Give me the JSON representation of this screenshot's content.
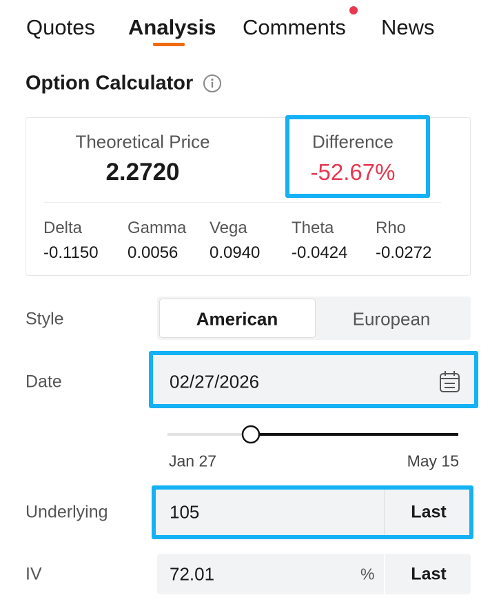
{
  "tabs": [
    {
      "label": "Quotes"
    },
    {
      "label": "Analysis"
    },
    {
      "label": "Comments"
    },
    {
      "label": "News"
    }
  ],
  "title": "Option Calculator",
  "summary": {
    "theoretical_price": {
      "label": "Theoretical Price",
      "value": "2.2720"
    },
    "difference": {
      "label": "Difference",
      "value": "-52.67%"
    }
  },
  "greeks": [
    {
      "name": "Delta",
      "value": "-0.1150"
    },
    {
      "name": "Gamma",
      "value": "0.0056"
    },
    {
      "name": "Vega",
      "value": "0.0940"
    },
    {
      "name": "Theta",
      "value": "-0.0424"
    },
    {
      "name": "Rho",
      "value": "-0.0272"
    }
  ],
  "style": {
    "label": "Style",
    "options": [
      "American",
      "European"
    ]
  },
  "date": {
    "label": "Date",
    "value": "02/27/2026",
    "range_start": "Jan 27",
    "range_end": "May 15"
  },
  "underlying": {
    "label": "Underlying",
    "value": "105",
    "button": "Last"
  },
  "iv": {
    "label": "IV",
    "value": "72.01",
    "unit": "%",
    "button": "Last"
  }
}
